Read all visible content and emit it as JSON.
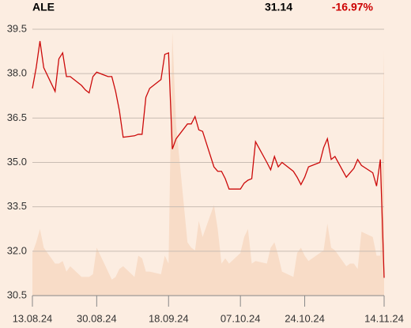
{
  "chart_data": {
    "type": "line",
    "ticker": "ALE",
    "price": "31.14",
    "change": "-16.97%",
    "change_color": "#cc0000",
    "x": [
      "13.08.24",
      "14.08.24",
      "15.08.24",
      "16.08.24",
      "19.08.24",
      "20.08.24",
      "21.08.24",
      "22.08.24",
      "23.08.24",
      "26.08.24",
      "27.08.24",
      "28.08.24",
      "29.08.24",
      "30.08.24",
      "02.09.24",
      "03.09.24",
      "04.09.24",
      "05.09.24",
      "06.09.24",
      "09.09.24",
      "10.09.24",
      "11.09.24",
      "12.09.24",
      "13.09.24",
      "16.09.24",
      "17.09.24",
      "18.09.24",
      "19.09.24",
      "20.09.24",
      "23.09.24",
      "24.09.24",
      "25.09.24",
      "26.09.24",
      "27.09.24",
      "30.09.24",
      "01.10.24",
      "02.10.24",
      "03.10.24",
      "04.10.24",
      "07.10.24",
      "08.10.24",
      "09.10.24",
      "10.10.24",
      "11.10.24",
      "14.10.24",
      "15.10.24",
      "16.10.24",
      "17.10.24",
      "18.10.24",
      "21.10.24",
      "22.10.24",
      "23.10.24",
      "24.10.24",
      "25.10.24",
      "28.10.24",
      "29.10.24",
      "30.10.24",
      "31.10.24",
      "01.11.24",
      "04.11.24",
      "05.11.24",
      "06.11.24",
      "07.11.24",
      "08.11.24",
      "11.11.24",
      "12.11.24",
      "13.11.24",
      "14.11.24"
    ],
    "series": [
      {
        "name": "ALE",
        "color": "#cc0a0a",
        "values": [
          37.5,
          38.2,
          39.1,
          38.2,
          37.4,
          38.5,
          38.7,
          37.9,
          37.9,
          37.6,
          37.45,
          37.35,
          37.9,
          38.05,
          37.9,
          37.9,
          37.4,
          36.75,
          35.85,
          35.9,
          35.95,
          35.95,
          37.2,
          37.5,
          37.8,
          38.65,
          38.7,
          35.45,
          35.8,
          36.3,
          36.3,
          36.55,
          36.1,
          36.05,
          34.85,
          34.7,
          34.7,
          34.45,
          34.1,
          34.1,
          34.3,
          34.4,
          34.45,
          35.7,
          35.0,
          34.75,
          35.2,
          34.85,
          35.0,
          34.7,
          34.5,
          34.25,
          34.5,
          34.85,
          35.0,
          35.5,
          35.8,
          35.1,
          35.2,
          34.5,
          34.65,
          34.8,
          35.1,
          34.9,
          34.65,
          34.2,
          35.1,
          31.1
        ]
      }
    ],
    "volume": {
      "color": "#f8dcc7",
      "axis": "y2",
      "values": [
        16,
        20,
        25,
        18,
        12,
        12,
        13,
        9,
        11,
        7,
        7,
        7,
        8,
        18,
        9,
        6,
        7,
        10,
        11,
        7,
        15,
        14,
        9,
        9,
        8,
        15,
        12,
        99,
        64,
        20,
        18,
        17,
        28,
        22,
        34,
        25,
        12,
        14,
        12,
        16,
        22,
        25,
        12,
        13,
        12,
        18,
        20,
        15,
        9,
        7,
        16,
        18,
        15,
        13,
        16,
        17,
        27,
        18,
        17,
        11,
        12,
        12,
        10,
        24,
        22,
        15,
        15,
        92
      ]
    },
    "xlim": [
      "13.08.24",
      "14.11.24"
    ],
    "xticks": [
      "13.08.24",
      "30.08.24",
      "18.09.24",
      "07.10.24",
      "24.10.24",
      "14.11.24"
    ],
    "ylim": [
      30.5,
      39.5
    ],
    "yticks": [
      {
        "value": 30.5,
        "label": "30.5"
      },
      {
        "value": 32,
        "label": "32.0"
      },
      {
        "value": 33.5,
        "label": "33.5"
      },
      {
        "value": 35,
        "label": "35.0"
      },
      {
        "value": 36.5,
        "label": "36.5"
      },
      {
        "value": 38,
        "label": "38.0"
      },
      {
        "value": 39.5,
        "label": "39.5"
      }
    ],
    "y2lim": [
      0,
      100
    ],
    "grid": true
  }
}
